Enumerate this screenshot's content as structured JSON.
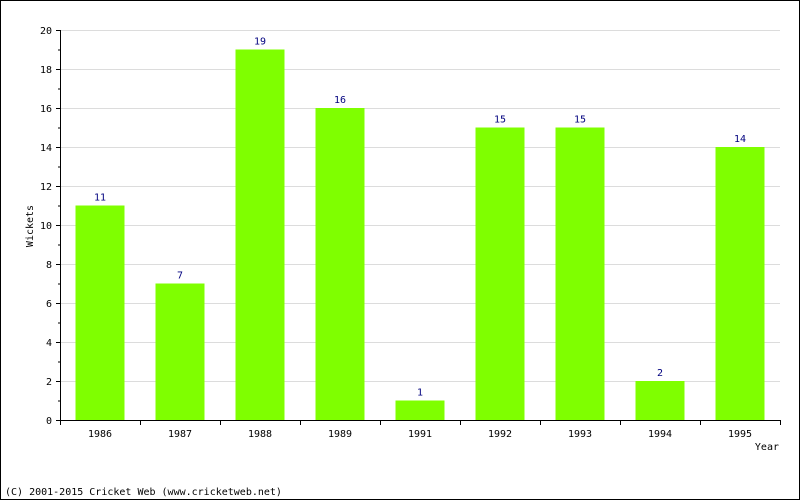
{
  "chart_data": {
    "type": "bar",
    "categories": [
      "1986",
      "1987",
      "1988",
      "1989",
      "1991",
      "1992",
      "1993",
      "1994",
      "1995"
    ],
    "values": [
      11,
      7,
      19,
      16,
      1,
      15,
      15,
      2,
      14
    ],
    "xlabel": "Year",
    "ylabel": "Wickets",
    "ylim": [
      0,
      20
    ],
    "yticks": [
      0,
      2,
      4,
      6,
      8,
      10,
      12,
      14,
      16,
      18,
      20
    ],
    "grid": true,
    "bar_color": "#7fff00",
    "label_color": "#00007f"
  },
  "footer": "(C) 2001-2015 Cricket Web (www.cricketweb.net)"
}
